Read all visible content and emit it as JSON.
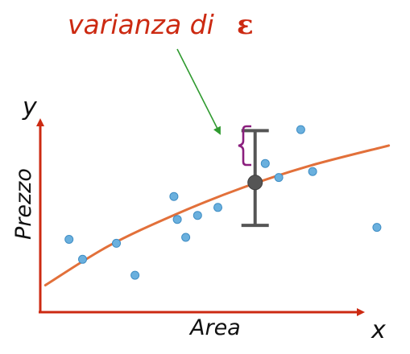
{
  "chart_data": {
    "type": "scatter",
    "title": "varianza di",
    "title_symbol": "ε",
    "xlabel": "Area",
    "ylabel": "Prezzo",
    "x_axis_letter": "x",
    "y_axis_letter": "y",
    "xlim": [
      0,
      10
    ],
    "ylim": [
      0,
      10
    ],
    "grid": false,
    "points": [
      {
        "x": 0.85,
        "y": 3.65
      },
      {
        "x": 1.25,
        "y": 2.65
      },
      {
        "x": 2.25,
        "y": 3.45
      },
      {
        "x": 2.8,
        "y": 1.85
      },
      {
        "x": 3.95,
        "y": 5.8
      },
      {
        "x": 4.05,
        "y": 4.65
      },
      {
        "x": 4.3,
        "y": 3.75
      },
      {
        "x": 4.65,
        "y": 4.85
      },
      {
        "x": 5.25,
        "y": 5.25
      },
      {
        "x": 6.65,
        "y": 7.45
      },
      {
        "x": 7.05,
        "y": 6.75
      },
      {
        "x": 7.7,
        "y": 9.15
      },
      {
        "x": 8.05,
        "y": 7.05
      },
      {
        "x": 9.95,
        "y": 4.25
      }
    ],
    "trend_line": [
      {
        "x": 0.15,
        "y": 1.35
      },
      {
        "x": 2.0,
        "y": 3.3
      },
      {
        "x": 4.0,
        "y": 4.9
      },
      {
        "x": 6.0,
        "y": 6.25
      },
      {
        "x": 8.0,
        "y": 7.35
      },
      {
        "x": 10.3,
        "y": 8.35
      }
    ],
    "error_bar": {
      "x": 6.35,
      "y_mean": 6.5,
      "y_low": 4.35,
      "y_high": 9.1
    },
    "colors": {
      "axis": "#cc2a12",
      "trend_line": "#e2703a",
      "points": "#6ab0de",
      "point_outline": "#3f8dc4",
      "error_bar": "#555555",
      "mean_marker": "#555555",
      "brace": "#8b1f7e",
      "annotation_arrow": "#2f9a2f",
      "title": "#cc2a12"
    }
  }
}
